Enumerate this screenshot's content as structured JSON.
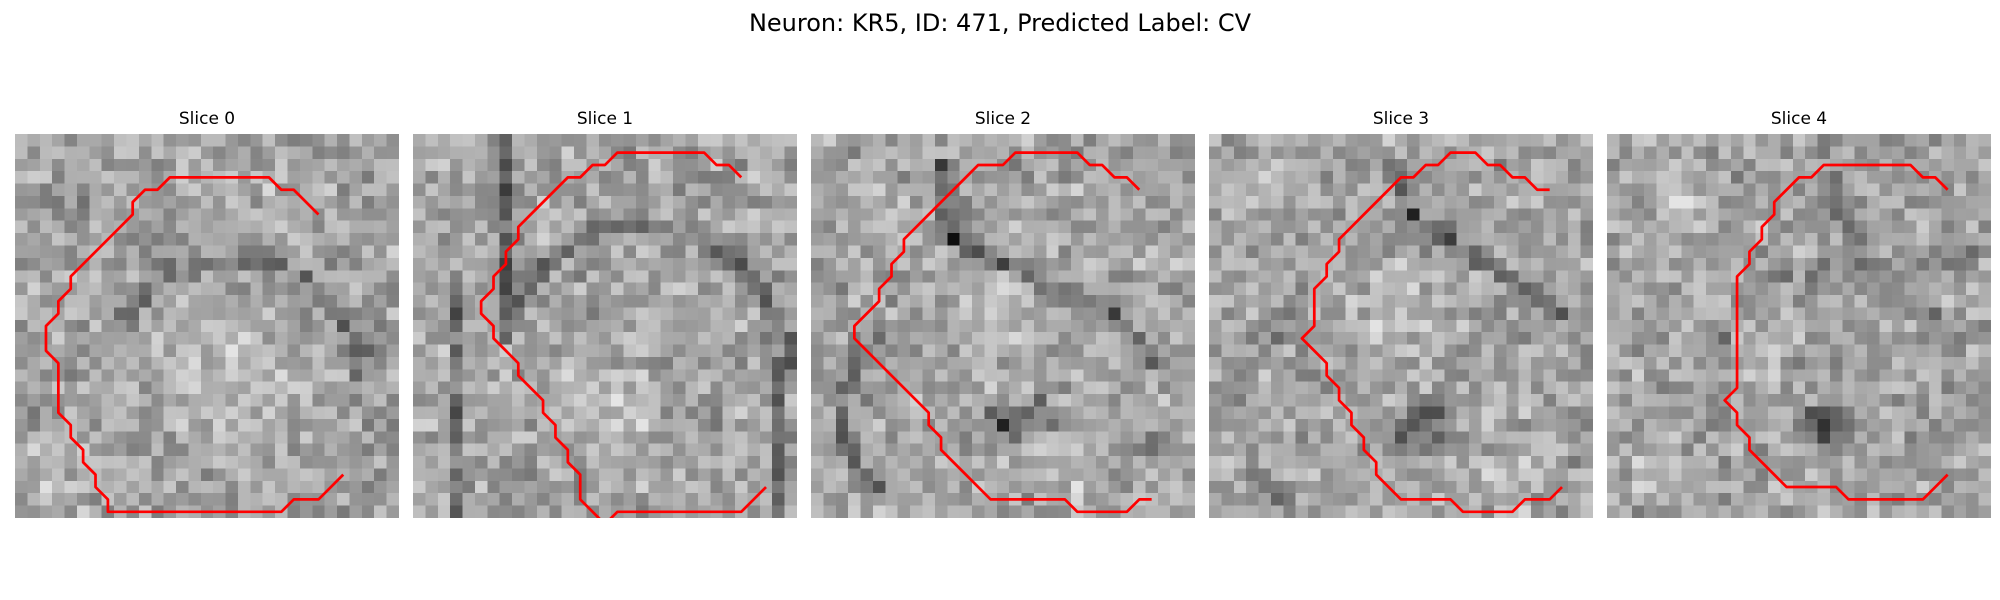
{
  "figure": {
    "title": "Neuron: KR5, ID: 471, Predicted Label: CV",
    "contour_color": "#ff0000",
    "colormap": "gray"
  },
  "slices": [
    {
      "title": "Slice 0",
      "contour": [
        [
          24,
          6
        ],
        [
          22,
          4
        ],
        [
          21,
          4
        ],
        [
          20,
          3
        ],
        [
          19,
          3
        ],
        [
          18,
          3
        ],
        [
          17,
          3
        ],
        [
          16,
          3
        ],
        [
          15,
          3
        ],
        [
          14,
          3
        ],
        [
          13,
          3
        ],
        [
          12,
          3
        ],
        [
          11,
          4
        ],
        [
          10,
          4
        ],
        [
          9,
          5
        ],
        [
          9,
          6
        ],
        [
          8,
          7
        ],
        [
          7,
          8
        ],
        [
          6,
          9
        ],
        [
          5,
          10
        ],
        [
          4,
          11
        ],
        [
          4,
          12
        ],
        [
          3,
          13
        ],
        [
          3,
          14
        ],
        [
          2,
          15
        ],
        [
          2,
          16
        ],
        [
          2,
          17
        ],
        [
          3,
          18
        ],
        [
          3,
          19
        ],
        [
          3,
          20
        ],
        [
          3,
          21
        ],
        [
          3,
          22
        ],
        [
          4,
          23
        ],
        [
          4,
          24
        ],
        [
          5,
          25
        ],
        [
          5,
          26
        ],
        [
          6,
          27
        ],
        [
          6,
          28
        ],
        [
          7,
          29
        ],
        [
          7,
          30
        ],
        [
          8,
          30
        ],
        [
          9,
          30
        ],
        [
          10,
          30
        ],
        [
          11,
          30
        ],
        [
          12,
          30
        ],
        [
          13,
          30
        ],
        [
          14,
          30
        ],
        [
          15,
          30
        ],
        [
          16,
          30
        ],
        [
          17,
          30
        ],
        [
          18,
          30
        ],
        [
          19,
          30
        ],
        [
          20,
          30
        ],
        [
          21,
          30
        ],
        [
          22,
          29
        ],
        [
          23,
          29
        ],
        [
          24,
          29
        ],
        [
          25,
          28
        ],
        [
          26,
          27
        ]
      ]
    },
    {
      "title": "Slice 1",
      "contour": [
        [
          26,
          3
        ],
        [
          25,
          2
        ],
        [
          24,
          2
        ],
        [
          23,
          1
        ],
        [
          22,
          1
        ],
        [
          21,
          1
        ],
        [
          20,
          1
        ],
        [
          19,
          1
        ],
        [
          18,
          1
        ],
        [
          17,
          1
        ],
        [
          16,
          1
        ],
        [
          15,
          2
        ],
        [
          14,
          2
        ],
        [
          13,
          3
        ],
        [
          12,
          3
        ],
        [
          11,
          4
        ],
        [
          10,
          5
        ],
        [
          9,
          6
        ],
        [
          8,
          7
        ],
        [
          8,
          8
        ],
        [
          7,
          9
        ],
        [
          7,
          10
        ],
        [
          6,
          11
        ],
        [
          6,
          12
        ],
        [
          5,
          13
        ],
        [
          5,
          14
        ],
        [
          6,
          15
        ],
        [
          6,
          16
        ],
        [
          7,
          17
        ],
        [
          8,
          18
        ],
        [
          8,
          19
        ],
        [
          9,
          20
        ],
        [
          10,
          21
        ],
        [
          10,
          22
        ],
        [
          11,
          23
        ],
        [
          11,
          24
        ],
        [
          12,
          25
        ],
        [
          12,
          26
        ],
        [
          13,
          27
        ],
        [
          13,
          28
        ],
        [
          13,
          29
        ],
        [
          14,
          30
        ],
        [
          15,
          31
        ],
        [
          16,
          30
        ],
        [
          17,
          30
        ],
        [
          18,
          30
        ],
        [
          19,
          30
        ],
        [
          20,
          30
        ],
        [
          21,
          30
        ],
        [
          22,
          30
        ],
        [
          23,
          30
        ],
        [
          24,
          30
        ],
        [
          25,
          30
        ],
        [
          26,
          30
        ],
        [
          27,
          29
        ],
        [
          28,
          28
        ]
      ]
    },
    {
      "title": "Slice 2",
      "contour": [
        [
          26,
          4
        ],
        [
          25,
          3
        ],
        [
          24,
          3
        ],
        [
          23,
          2
        ],
        [
          22,
          2
        ],
        [
          21,
          1
        ],
        [
          20,
          1
        ],
        [
          19,
          1
        ],
        [
          18,
          1
        ],
        [
          17,
          1
        ],
        [
          16,
          1
        ],
        [
          15,
          2
        ],
        [
          14,
          2
        ],
        [
          13,
          2
        ],
        [
          12,
          3
        ],
        [
          11,
          4
        ],
        [
          10,
          5
        ],
        [
          9,
          6
        ],
        [
          8,
          7
        ],
        [
          7,
          8
        ],
        [
          7,
          9
        ],
        [
          6,
          10
        ],
        [
          6,
          11
        ],
        [
          5,
          12
        ],
        [
          5,
          13
        ],
        [
          4,
          14
        ],
        [
          3,
          15
        ],
        [
          3,
          16
        ],
        [
          4,
          17
        ],
        [
          5,
          18
        ],
        [
          6,
          19
        ],
        [
          7,
          20
        ],
        [
          8,
          21
        ],
        [
          9,
          22
        ],
        [
          9,
          23
        ],
        [
          10,
          24
        ],
        [
          10,
          25
        ],
        [
          11,
          26
        ],
        [
          12,
          27
        ],
        [
          13,
          28
        ],
        [
          14,
          29
        ],
        [
          15,
          29
        ],
        [
          16,
          29
        ],
        [
          17,
          29
        ],
        [
          18,
          29
        ],
        [
          19,
          29
        ],
        [
          20,
          29
        ],
        [
          21,
          30
        ],
        [
          22,
          30
        ],
        [
          23,
          30
        ],
        [
          24,
          30
        ],
        [
          25,
          30
        ],
        [
          26,
          29
        ],
        [
          27,
          29
        ]
      ]
    },
    {
      "title": "Slice 3",
      "contour": [
        [
          27,
          4
        ],
        [
          26,
          4
        ],
        [
          25,
          3
        ],
        [
          24,
          3
        ],
        [
          23,
          2
        ],
        [
          22,
          2
        ],
        [
          21,
          1
        ],
        [
          20,
          1
        ],
        [
          19,
          1
        ],
        [
          18,
          2
        ],
        [
          17,
          2
        ],
        [
          16,
          3
        ],
        [
          15,
          3
        ],
        [
          14,
          4
        ],
        [
          13,
          5
        ],
        [
          12,
          6
        ],
        [
          11,
          7
        ],
        [
          10,
          8
        ],
        [
          10,
          9
        ],
        [
          9,
          10
        ],
        [
          9,
          11
        ],
        [
          8,
          12
        ],
        [
          8,
          13
        ],
        [
          8,
          14
        ],
        [
          8,
          15
        ],
        [
          7,
          16
        ],
        [
          8,
          17
        ],
        [
          9,
          18
        ],
        [
          9,
          19
        ],
        [
          10,
          20
        ],
        [
          10,
          21
        ],
        [
          11,
          22
        ],
        [
          11,
          23
        ],
        [
          12,
          24
        ],
        [
          12,
          25
        ],
        [
          13,
          26
        ],
        [
          13,
          27
        ],
        [
          14,
          28
        ],
        [
          15,
          29
        ],
        [
          16,
          29
        ],
        [
          17,
          29
        ],
        [
          18,
          29
        ],
        [
          19,
          29
        ],
        [
          20,
          30
        ],
        [
          21,
          30
        ],
        [
          22,
          30
        ],
        [
          23,
          30
        ],
        [
          24,
          30
        ],
        [
          25,
          29
        ],
        [
          26,
          29
        ],
        [
          27,
          29
        ],
        [
          28,
          28
        ]
      ]
    },
    {
      "title": "Slice 4",
      "contour": [
        [
          27,
          4
        ],
        [
          26,
          3
        ],
        [
          25,
          3
        ],
        [
          24,
          2
        ],
        [
          23,
          2
        ],
        [
          22,
          2
        ],
        [
          21,
          2
        ],
        [
          20,
          2
        ],
        [
          19,
          2
        ],
        [
          18,
          2
        ],
        [
          17,
          2
        ],
        [
          16,
          3
        ],
        [
          15,
          3
        ],
        [
          14,
          4
        ],
        [
          13,
          5
        ],
        [
          13,
          6
        ],
        [
          12,
          7
        ],
        [
          12,
          8
        ],
        [
          11,
          9
        ],
        [
          11,
          10
        ],
        [
          10,
          11
        ],
        [
          10,
          12
        ],
        [
          10,
          13
        ],
        [
          10,
          14
        ],
        [
          10,
          15
        ],
        [
          10,
          16
        ],
        [
          10,
          17
        ],
        [
          10,
          18
        ],
        [
          10,
          19
        ],
        [
          10,
          20
        ],
        [
          9,
          21
        ],
        [
          10,
          22
        ],
        [
          10,
          23
        ],
        [
          11,
          24
        ],
        [
          11,
          25
        ],
        [
          12,
          26
        ],
        [
          13,
          27
        ],
        [
          14,
          28
        ],
        [
          15,
          28
        ],
        [
          16,
          28
        ],
        [
          17,
          28
        ],
        [
          18,
          28
        ],
        [
          19,
          29
        ],
        [
          20,
          29
        ],
        [
          21,
          29
        ],
        [
          22,
          29
        ],
        [
          23,
          29
        ],
        [
          24,
          29
        ],
        [
          25,
          29
        ],
        [
          26,
          28
        ],
        [
          27,
          27
        ]
      ]
    }
  ]
}
